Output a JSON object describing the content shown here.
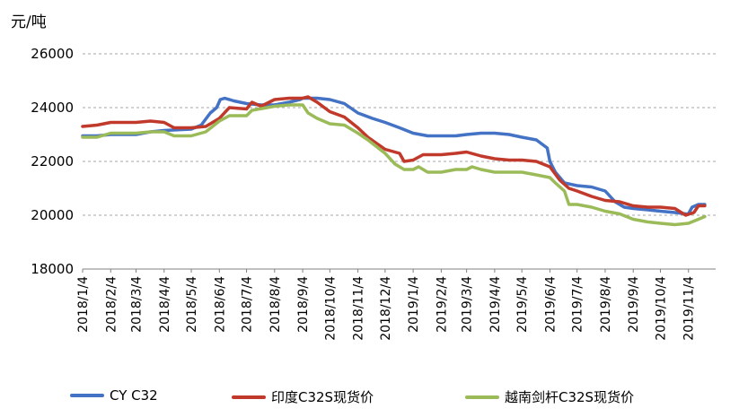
{
  "chart_data": {
    "type": "line",
    "title": "",
    "ylabel": "元/吨",
    "xlabel": "",
    "ylim": [
      18000,
      26000
    ],
    "yticks": [
      "18000",
      "20000",
      "22000",
      "24000",
      "26000"
    ],
    "grid": "horizontal dashed",
    "legend_position": "bottom",
    "x_ticks": [
      "2018/1/4",
      "2018/2/4",
      "2018/3/4",
      "2018/4/4",
      "2018/5/4",
      "2018/6/4",
      "2018/7/4",
      "2018/8/4",
      "2018/9/4",
      "2018/10/4",
      "2018/11/4",
      "2018/12/4",
      "2019/1/4",
      "2019/2/4",
      "2019/3/4",
      "2019/4/4",
      "2019/5/4",
      "2019/6/4",
      "2019/7/4",
      "2019/8/4",
      "2019/9/4",
      "2019/10/4",
      "2019/11/4"
    ],
    "series": [
      {
        "name": "CY C32",
        "color": "#4472C4",
        "points": [
          [
            "2018/1/4",
            22950
          ],
          [
            "2018/1/20",
            22950
          ],
          [
            "2018/2/4",
            23000
          ],
          [
            "2018/3/4",
            23000
          ],
          [
            "2018/3/20",
            23100
          ],
          [
            "2018/4/4",
            23150
          ],
          [
            "2018/5/4",
            23200
          ],
          [
            "2018/5/15",
            23350
          ],
          [
            "2018/5/25",
            23800
          ],
          [
            "2018/6/1",
            24000
          ],
          [
            "2018/6/5",
            24300
          ],
          [
            "2018/6/10",
            24350
          ],
          [
            "2018/6/20",
            24250
          ],
          [
            "2018/7/4",
            24150
          ],
          [
            "2018/7/20",
            24100
          ],
          [
            "2018/8/4",
            24100
          ],
          [
            "2018/8/20",
            24200
          ],
          [
            "2018/9/1",
            24300
          ],
          [
            "2018/9/4",
            24350
          ],
          [
            "2018/9/20",
            24350
          ],
          [
            "2018/10/4",
            24300
          ],
          [
            "2018/10/20",
            24150
          ],
          [
            "2018/11/4",
            23800
          ],
          [
            "2018/11/20",
            23600
          ],
          [
            "2018/12/4",
            23450
          ],
          [
            "2018/12/20",
            23250
          ],
          [
            "2019/1/4",
            23050
          ],
          [
            "2019/1/20",
            22950
          ],
          [
            "2019/2/4",
            22950
          ],
          [
            "2019/2/20",
            22950
          ],
          [
            "2019/3/4",
            23000
          ],
          [
            "2019/3/20",
            23050
          ],
          [
            "2019/4/4",
            23050
          ],
          [
            "2019/4/20",
            23000
          ],
          [
            "2019/5/4",
            22900
          ],
          [
            "2019/5/20",
            22800
          ],
          [
            "2019/6/1",
            22500
          ],
          [
            "2019/6/4",
            22000
          ],
          [
            "2019/6/10",
            21600
          ],
          [
            "2019/6/20",
            21200
          ],
          [
            "2019/7/4",
            21100
          ],
          [
            "2019/7/20",
            21050
          ],
          [
            "2019/8/4",
            20900
          ],
          [
            "2019/8/15",
            20500
          ],
          [
            "2019/8/25",
            20300
          ],
          [
            "2019/9/4",
            20250
          ],
          [
            "2019/9/20",
            20200
          ],
          [
            "2019/10/4",
            20150
          ],
          [
            "2019/10/20",
            20100
          ],
          [
            "2019/11/1",
            20050
          ],
          [
            "2019/11/4",
            20050
          ],
          [
            "2019/11/8",
            20300
          ],
          [
            "2019/11/15",
            20400
          ],
          [
            "2019/11/22",
            20400
          ]
        ]
      },
      {
        "name": "印度C32S现货价",
        "color": "#C0392B",
        "points": [
          [
            "2018/1/4",
            23300
          ],
          [
            "2018/1/20",
            23350
          ],
          [
            "2018/2/4",
            23450
          ],
          [
            "2018/3/4",
            23450
          ],
          [
            "2018/3/20",
            23500
          ],
          [
            "2018/4/4",
            23450
          ],
          [
            "2018/4/15",
            23250
          ],
          [
            "2018/5/4",
            23250
          ],
          [
            "2018/5/20",
            23300
          ],
          [
            "2018/6/4",
            23600
          ],
          [
            "2018/6/15",
            24000
          ],
          [
            "2018/7/4",
            23950
          ],
          [
            "2018/7/10",
            24200
          ],
          [
            "2018/7/20",
            24050
          ],
          [
            "2018/8/4",
            24300
          ],
          [
            "2018/8/20",
            24350
          ],
          [
            "2018/9/4",
            24350
          ],
          [
            "2018/9/10",
            24400
          ],
          [
            "2018/9/20",
            24200
          ],
          [
            "2018/10/4",
            23850
          ],
          [
            "2018/10/20",
            23650
          ],
          [
            "2018/11/4",
            23250
          ],
          [
            "2018/11/15",
            22900
          ],
          [
            "2018/12/4",
            22450
          ],
          [
            "2018/12/20",
            22300
          ],
          [
            "2018/12/25",
            22000
          ],
          [
            "2019/1/4",
            22050
          ],
          [
            "2019/1/15",
            22250
          ],
          [
            "2019/2/4",
            22250
          ],
          [
            "2019/2/20",
            22300
          ],
          [
            "2019/3/4",
            22350
          ],
          [
            "2019/3/20",
            22200
          ],
          [
            "2019/4/4",
            22100
          ],
          [
            "2019/4/20",
            22050
          ],
          [
            "2019/5/4",
            22050
          ],
          [
            "2019/5/20",
            22000
          ],
          [
            "2019/6/4",
            21800
          ],
          [
            "2019/6/15",
            21300
          ],
          [
            "2019/6/25",
            21000
          ],
          [
            "2019/7/4",
            20900
          ],
          [
            "2019/7/20",
            20700
          ],
          [
            "2019/8/4",
            20550
          ],
          [
            "2019/8/20",
            20500
          ],
          [
            "2019/9/4",
            20350
          ],
          [
            "2019/9/20",
            20300
          ],
          [
            "2019/10/4",
            20300
          ],
          [
            "2019/10/20",
            20250
          ],
          [
            "2019/11/1",
            20000
          ],
          [
            "2019/11/10",
            20100
          ],
          [
            "2019/11/15",
            20350
          ],
          [
            "2019/11/22",
            20350
          ]
        ]
      },
      {
        "name": "越南剑杆C32S现货价",
        "color": "#9BBB59",
        "points": [
          [
            "2018/1/4",
            22900
          ],
          [
            "2018/1/20",
            22900
          ],
          [
            "2018/2/4",
            23050
          ],
          [
            "2018/3/4",
            23050
          ],
          [
            "2018/3/20",
            23100
          ],
          [
            "2018/4/4",
            23100
          ],
          [
            "2018/4/15",
            22950
          ],
          [
            "2018/5/4",
            22950
          ],
          [
            "2018/5/20",
            23100
          ],
          [
            "2018/6/4",
            23500
          ],
          [
            "2018/6/15",
            23700
          ],
          [
            "2018/7/4",
            23700
          ],
          [
            "2018/7/10",
            23900
          ],
          [
            "2018/8/4",
            24050
          ],
          [
            "2018/8/20",
            24100
          ],
          [
            "2018/9/4",
            24100
          ],
          [
            "2018/9/10",
            23800
          ],
          [
            "2018/9/20",
            23600
          ],
          [
            "2018/10/4",
            23400
          ],
          [
            "2018/10/20",
            23350
          ],
          [
            "2018/11/4",
            23050
          ],
          [
            "2018/11/15",
            22800
          ],
          [
            "2018/12/4",
            22300
          ],
          [
            "2018/12/15",
            21900
          ],
          [
            "2018/12/25",
            21700
          ],
          [
            "2019/1/4",
            21700
          ],
          [
            "2019/1/10",
            21800
          ],
          [
            "2019/1/20",
            21600
          ],
          [
            "2019/2/4",
            21600
          ],
          [
            "2019/2/20",
            21700
          ],
          [
            "2019/3/4",
            21700
          ],
          [
            "2019/3/10",
            21800
          ],
          [
            "2019/3/20",
            21700
          ],
          [
            "2019/4/4",
            21600
          ],
          [
            "2019/5/4",
            21600
          ],
          [
            "2019/5/20",
            21500
          ],
          [
            "2019/6/4",
            21400
          ],
          [
            "2019/6/10",
            21200
          ],
          [
            "2019/6/20",
            20900
          ],
          [
            "2019/6/25",
            20400
          ],
          [
            "2019/7/4",
            20400
          ],
          [
            "2019/7/20",
            20300
          ],
          [
            "2019/8/4",
            20150
          ],
          [
            "2019/8/20",
            20050
          ],
          [
            "2019/9/4",
            19850
          ],
          [
            "2019/9/20",
            19750
          ],
          [
            "2019/10/4",
            19700
          ],
          [
            "2019/10/20",
            19650
          ],
          [
            "2019/11/4",
            19700
          ],
          [
            "2019/11/15",
            19850
          ],
          [
            "2019/11/22",
            19950
          ]
        ]
      }
    ]
  }
}
